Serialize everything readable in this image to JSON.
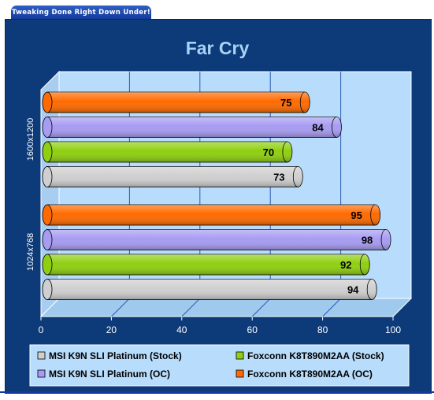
{
  "banner": {
    "text": "Tweaking Done Right Down Under!"
  },
  "colors": {
    "background": "#0d3a78",
    "plot": "#b8dcfb",
    "title": "#a9d3f7",
    "grid": "#2a5ab0"
  },
  "chart_data": {
    "type": "bar",
    "orientation": "horizontal",
    "title": "Far Cry",
    "xlim": [
      0,
      100
    ],
    "xticks": [
      "0",
      "20",
      "40",
      "60",
      "80",
      "100"
    ],
    "grid": true,
    "legend_position": "bottom",
    "groups": [
      {
        "label": "1600x1200",
        "bars": [
          {
            "series": "Foxconn K8T890M2AA (OC)",
            "value": 75,
            "label": "75"
          },
          {
            "series": "MSI K9N SLI Platinum (OC)",
            "value": 84,
            "label": "84"
          },
          {
            "series": "Foxconn K8T890M2AA (Stock)",
            "value": 70,
            "label": "70"
          },
          {
            "series": "MSI K9N SLI Platinum (Stock)",
            "value": 73,
            "label": "73"
          }
        ]
      },
      {
        "label": "1024x768",
        "bars": [
          {
            "series": "Foxconn K8T890M2AA (OC)",
            "value": 95,
            "label": "95"
          },
          {
            "series": "MSI K9N SLI Platinum (OC)",
            "value": 98,
            "label": "98"
          },
          {
            "series": "Foxconn K8T890M2AA (Stock)",
            "value": 92,
            "label": "92"
          },
          {
            "series": "MSI K9N SLI Platinum (Stock)",
            "value": 94,
            "label": "94"
          }
        ]
      }
    ],
    "series": [
      {
        "name": "MSI K9N SLI Platinum (Stock)",
        "color": "#cfcfcf"
      },
      {
        "name": "Foxconn K8T890M2AA (Stock)",
        "color": "#8fcf10"
      },
      {
        "name": "MSI K9N SLI Platinum (OC)",
        "color": "#a79cf2"
      },
      {
        "name": "Foxconn K8T890M2AA (OC)",
        "color": "#ff6a00"
      }
    ]
  }
}
